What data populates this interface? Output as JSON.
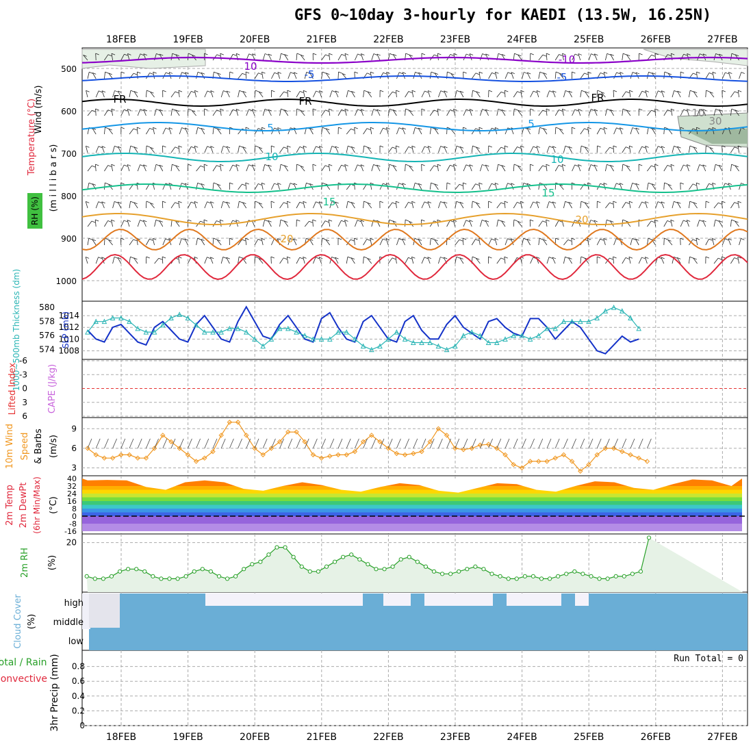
{
  "title": "GFS 0~10day 3-hourly for KAEDI (13.5W, 16.25N)",
  "dates": [
    "18FEB",
    "19FEB",
    "20FEB",
    "21FEB",
    "22FEB",
    "23FEB",
    "24FEB",
    "25FEB",
    "26FEB",
    "27FEB"
  ],
  "colors": {
    "purple": "#8a00c8",
    "blue": "#1450e0",
    "lightblue": "#1496e6",
    "teal": "#14b4b4",
    "green": "#14c08c",
    "orange_light": "#e6a02c",
    "orange": "#e0781e",
    "red": "#e0283c",
    "slp": "#1432c8",
    "thickness": "#28b4b4",
    "lifted": "#e63232",
    "cape": "#c864dc",
    "wind10": "#f0961e",
    "rh2m": "#28a028",
    "cloud": "#6aaed6",
    "grid": "#aaaaaa"
  },
  "panels": {
    "upper": {
      "ylabel_wind": "Wind (m/s)",
      "ylabel_temp": "Temperature (°C)",
      "ylabel_mb": "(m i l l i b a r s)",
      "ylabel_rh": "RH (%)",
      "yticks": [
        "500",
        "600",
        "700",
        "800",
        "900",
        "1000"
      ],
      "contour_labels": [
        "10",
        "-10",
        "-5",
        "-5",
        "FR",
        "FR",
        "FR",
        "5",
        "5",
        "10",
        "10",
        "15",
        "15",
        "20",
        "20",
        "10",
        "30"
      ]
    },
    "slp": {
      "ylabel_left": "1000~500mb Thickness (dm)",
      "ylabel_right": "SLP (mb)",
      "yticks_left": [
        "574",
        "576",
        "578",
        "580"
      ],
      "yticks_right": [
        "1008",
        "1010",
        "1012",
        "1014"
      ]
    },
    "cape": {
      "ylabel_left": "Lifted Index",
      "ylabel_right": "CAPE (J/kg)",
      "yticks": [
        "-6",
        "-3",
        "0",
        "3",
        "6"
      ]
    },
    "wind10": {
      "ylabel_1": "10m Wind",
      "ylabel_2": "Speed",
      "ylabel_3": "& Barbs",
      "ylabel_unit": "(m/s)",
      "yticks": [
        "3",
        "6",
        "9"
      ]
    },
    "temp2m": {
      "ylabel_1": "2m Temp",
      "ylabel_2": "2m DewPt",
      "ylabel_3": "(6hr Min/Max)",
      "ylabel_unit": "(°C)",
      "yticks": [
        "40",
        "32",
        "24",
        "16",
        "8",
        "0",
        "-8",
        "-16"
      ]
    },
    "rh2m": {
      "ylabel": "2m RH",
      "ylabel_unit": "(%)",
      "yticks": [
        "20"
      ]
    },
    "cloud": {
      "ylabel": "Cloud Cover",
      "ylabel_unit": "(%)",
      "levels": [
        "high",
        "middle",
        "low"
      ]
    },
    "precip": {
      "ylabel_1": "Total / Rain",
      "ylabel_2": "Convective",
      "ylabel_3": "3hr Precip (mm)",
      "yticks": [
        "0",
        "0.2",
        "0.4",
        "0.6",
        "0.8"
      ],
      "run_total": "Run Total = 0"
    }
  },
  "chart_data": {
    "type": "line",
    "x": "3-hourly steps from 17FEB 12Z to 27FEB 06Z",
    "series": [
      {
        "name": "SLP (mb)",
        "values": [
          1011.5,
          1010,
          1009.5,
          1012,
          1012.5,
          1011,
          1009.5,
          1009,
          1012,
          1013,
          1011.5,
          1010,
          1009.5,
          1012.5,
          1014,
          1012,
          1010,
          1009.5,
          1013,
          1015.5,
          1013,
          1010.5,
          1010,
          1012.5,
          1014,
          1012,
          1010,
          1009.5,
          1013.5,
          1014.5,
          1012,
          1010,
          1009.5,
          1013,
          1014,
          1012,
          1010,
          1009.5,
          1013,
          1014,
          1011.5,
          1010,
          1010,
          1012.5,
          1014,
          1012,
          1011,
          1010,
          1013,
          1013.5,
          1012,
          1011,
          1010.5,
          1013.5,
          1013.5,
          1012,
          1010,
          1011.5,
          1013,
          1012,
          1010,
          1008,
          1007.5,
          1009,
          1010.5,
          1009.5,
          1010
        ]
      },
      {
        "name": "1000~500mb Thickness (dm)",
        "values": [
          576.5,
          578,
          578,
          578.5,
          578.5,
          578,
          577,
          576.5,
          576.5,
          577.5,
          578.5,
          579,
          578.5,
          577.5,
          576.5,
          576.5,
          576.5,
          577,
          577,
          576.5,
          575.5,
          574.5,
          575.5,
          577,
          577,
          576.5,
          576,
          575.5,
          575.5,
          575.5,
          576.5,
          576.5,
          575.5,
          574.5,
          574,
          574.5,
          575.5,
          576.5,
          575.5,
          575,
          575,
          575,
          574.5,
          574,
          574.5,
          576,
          576.5,
          576,
          575,
          575,
          575.5,
          576,
          576,
          575.5,
          576,
          577,
          577,
          578,
          578,
          578,
          578,
          578.5,
          579.5,
          580,
          579.5,
          578.5,
          577
        ]
      },
      {
        "name": "10m Wind Speed (m/s)",
        "values": [
          6,
          5,
          4.5,
          4.5,
          5,
          5,
          4.5,
          4.5,
          6,
          8,
          7,
          6,
          5,
          4,
          4.5,
          5.5,
          8,
          10,
          10,
          8,
          6,
          5,
          6,
          7,
          8.5,
          8.5,
          7,
          5,
          4.5,
          4.8,
          5,
          5,
          5.5,
          7,
          8,
          7,
          6,
          5.2,
          5,
          5.2,
          5.5,
          7,
          9,
          8,
          6,
          5.8,
          6,
          6.5,
          6.6,
          6,
          5,
          3.5,
          3,
          4,
          4,
          4,
          4.5,
          5,
          4,
          2.5,
          3.5,
          5,
          6,
          6,
          5.5,
          5,
          4.5,
          4
        ]
      },
      {
        "name": "2m RH (%)",
        "values": [
          6,
          5,
          5,
          6,
          8,
          9,
          9,
          8,
          6,
          5,
          5,
          5,
          6,
          8,
          9,
          8,
          6,
          5,
          6,
          9,
          11,
          12,
          15,
          18,
          18,
          14,
          10,
          8,
          8,
          10,
          12,
          14,
          15,
          13,
          11,
          9,
          9,
          10,
          13,
          14,
          12,
          10,
          8,
          7,
          7,
          8,
          9,
          10,
          9,
          7,
          6,
          5,
          5,
          6,
          6,
          5,
          5,
          6,
          7,
          8,
          7,
          6,
          5,
          5,
          6,
          6,
          7,
          8,
          22
        ]
      },
      {
        "name": "2m Temp max (°C)",
        "values": [
          38,
          38.5,
          38,
          31,
          28,
          36,
          38,
          36,
          29,
          27,
          32,
          36,
          33,
          28,
          26,
          31,
          35,
          33,
          27,
          25,
          30,
          35,
          34,
          28,
          26,
          32,
          37,
          36,
          30,
          28,
          34,
          39,
          38,
          32
        ]
      }
    ],
    "ylim_slp": [
      1007,
      1016
    ],
    "ylim_thickness": [
      573,
      580.5
    ],
    "ylim_wind10": [
      2,
      10.5
    ],
    "ylim_rh": [
      0,
      23
    ],
    "lifted_index": 0,
    "run_total_precip": 0
  }
}
